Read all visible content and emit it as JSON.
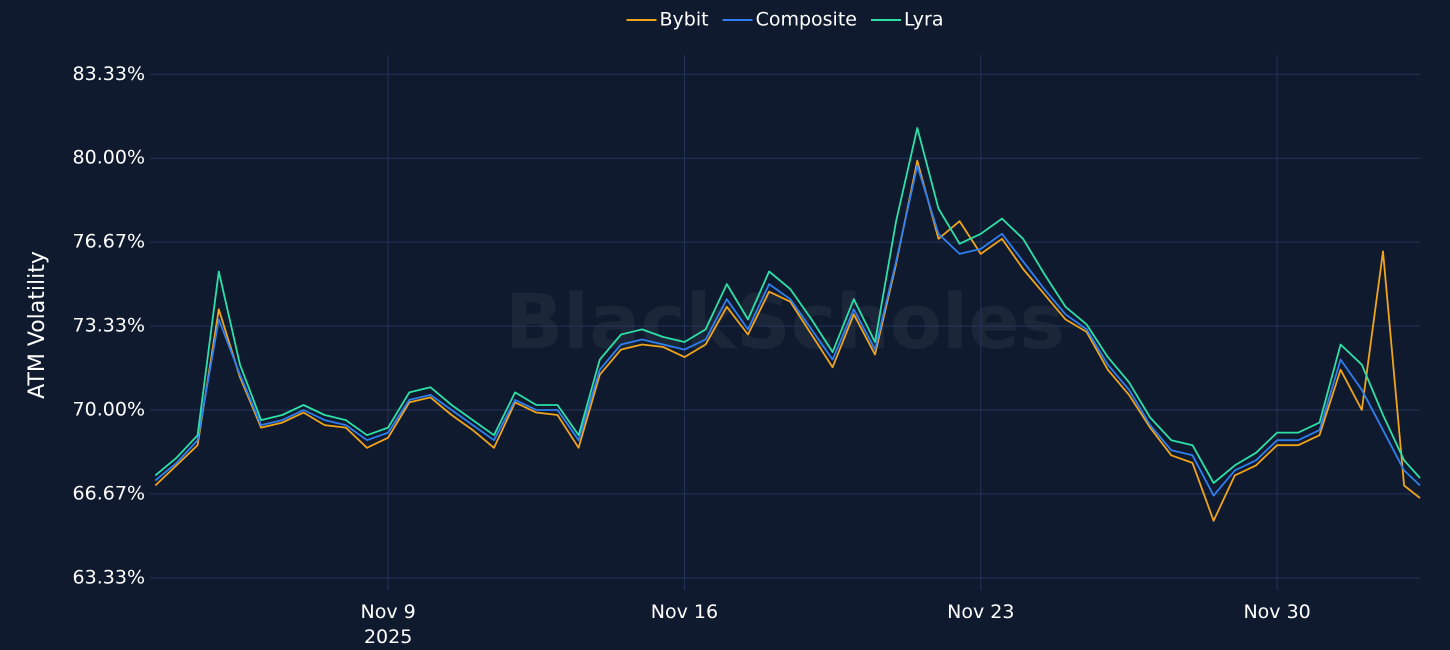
{
  "chart_data": {
    "type": "line",
    "watermark": "BlackScholes",
    "y_label": "ATM Volatility",
    "grid": true,
    "legend": "top",
    "x": [
      "2025-11-03T12:00",
      "2025-11-04T00:00",
      "2025-11-04T12:00",
      "2025-11-05T00:00",
      "2025-11-05T12:00",
      "2025-11-06T00:00",
      "2025-11-06T12:00",
      "2025-11-07T00:00",
      "2025-11-07T12:00",
      "2025-11-08T00:00",
      "2025-11-08T12:00",
      "2025-11-09T00:00",
      "2025-11-09T12:00",
      "2025-11-10T00:00",
      "2025-11-10T12:00",
      "2025-11-11T00:00",
      "2025-11-11T12:00",
      "2025-11-12T00:00",
      "2025-11-12T12:00",
      "2025-11-13T00:00",
      "2025-11-13T12:00",
      "2025-11-14T00:00",
      "2025-11-14T12:00",
      "2025-11-15T00:00",
      "2025-11-15T12:00",
      "2025-11-16T00:00",
      "2025-11-16T12:00",
      "2025-11-17T00:00",
      "2025-11-17T12:00",
      "2025-11-18T00:00",
      "2025-11-18T12:00",
      "2025-11-19T00:00",
      "2025-11-19T12:00",
      "2025-11-20T00:00",
      "2025-11-20T12:00",
      "2025-11-21T00:00",
      "2025-11-21T12:00",
      "2025-11-22T00:00",
      "2025-11-22T12:00",
      "2025-11-23T00:00",
      "2025-11-23T12:00",
      "2025-11-24T00:00",
      "2025-11-24T12:00",
      "2025-11-25T00:00",
      "2025-11-25T12:00",
      "2025-11-26T00:00",
      "2025-11-26T12:00",
      "2025-11-27T00:00",
      "2025-11-27T12:00",
      "2025-11-28T00:00",
      "2025-11-28T12:00",
      "2025-11-29T00:00",
      "2025-11-29T12:00",
      "2025-11-30T00:00",
      "2025-11-30T12:00",
      "2025-12-01T00:00",
      "2025-12-01T12:00",
      "2025-12-02T00:00",
      "2025-12-02T12:00",
      "2025-12-03T00:00",
      "2025-12-03T09:00"
    ],
    "series": [
      {
        "name": "Bybit",
        "color": "#f0a41c",
        "values": [
          67.0,
          67.8,
          68.6,
          74.0,
          71.3,
          69.3,
          69.5,
          69.9,
          69.4,
          69.3,
          68.5,
          68.9,
          70.3,
          70.5,
          69.8,
          69.2,
          68.5,
          70.3,
          69.9,
          69.8,
          68.5,
          71.4,
          72.4,
          72.6,
          72.5,
          72.1,
          72.6,
          74.1,
          73.0,
          74.7,
          74.3,
          73.0,
          71.7,
          73.8,
          72.2,
          75.8,
          79.9,
          76.8,
          77.5,
          76.2,
          76.8,
          75.6,
          74.6,
          73.6,
          73.1,
          71.6,
          70.6,
          69.3,
          68.2,
          67.9,
          65.6,
          67.4,
          67.8,
          68.6,
          68.6,
          69.0,
          71.6,
          70.0,
          76.3,
          67.0,
          66.5
        ]
      },
      {
        "name": "Composite",
        "color": "#2f7ff0",
        "values": [
          67.2,
          67.9,
          68.8,
          73.6,
          71.4,
          69.4,
          69.6,
          70.0,
          69.6,
          69.4,
          68.8,
          69.1,
          70.4,
          70.6,
          70.0,
          69.4,
          68.8,
          70.4,
          70.0,
          70.0,
          68.8,
          71.6,
          72.6,
          72.8,
          72.6,
          72.4,
          72.8,
          74.4,
          73.2,
          75.0,
          74.4,
          73.2,
          72.0,
          74.0,
          72.4,
          75.9,
          79.7,
          77.0,
          76.2,
          76.4,
          77.0,
          75.9,
          74.8,
          73.8,
          73.2,
          71.8,
          70.8,
          69.4,
          68.4,
          68.2,
          66.6,
          67.6,
          68.0,
          68.8,
          68.8,
          69.2,
          72.0,
          70.8,
          69.2,
          67.6,
          67.0
        ]
      },
      {
        "name": "Lyra",
        "color": "#2de0a8",
        "values": [
          67.4,
          68.1,
          69.0,
          75.5,
          71.8,
          69.6,
          69.8,
          70.2,
          69.8,
          69.6,
          69.0,
          69.3,
          70.7,
          70.9,
          70.2,
          69.6,
          69.0,
          70.7,
          70.2,
          70.2,
          69.0,
          72.0,
          73.0,
          73.2,
          72.9,
          72.7,
          73.2,
          75.0,
          73.6,
          75.5,
          74.8,
          73.6,
          72.3,
          74.4,
          72.7,
          77.5,
          81.2,
          78.0,
          76.6,
          77.0,
          77.6,
          76.8,
          75.4,
          74.1,
          73.4,
          72.1,
          71.1,
          69.7,
          68.8,
          68.6,
          67.1,
          67.8,
          68.3,
          69.1,
          69.1,
          69.5,
          72.6,
          71.8,
          69.8,
          68.0,
          67.3
        ]
      }
    ],
    "xlim": [
      "2025-11-03T09:00",
      "2025-12-03T09:00"
    ],
    "xticks": [
      {
        "value": "2025-11-09T00:00",
        "label": "Nov 9\n2025"
      },
      {
        "value": "2025-11-16T00:00",
        "label": "Nov 16"
      },
      {
        "value": "2025-11-23T00:00",
        "label": "Nov 23"
      },
      {
        "value": "2025-11-30T00:00",
        "label": "Nov 30"
      }
    ],
    "ylim": [
      62.85,
      84.1
    ],
    "yticks": [
      {
        "value": 63.333,
        "label": "63.33%"
      },
      {
        "value": 66.667,
        "label": "66.67%"
      },
      {
        "value": 70,
        "label": "70.00%"
      },
      {
        "value": 73.333,
        "label": "73.33%"
      },
      {
        "value": 76.667,
        "label": "76.67%"
      },
      {
        "value": 80,
        "label": "80.00%"
      },
      {
        "value": 83.333,
        "label": "83.33%"
      }
    ]
  }
}
